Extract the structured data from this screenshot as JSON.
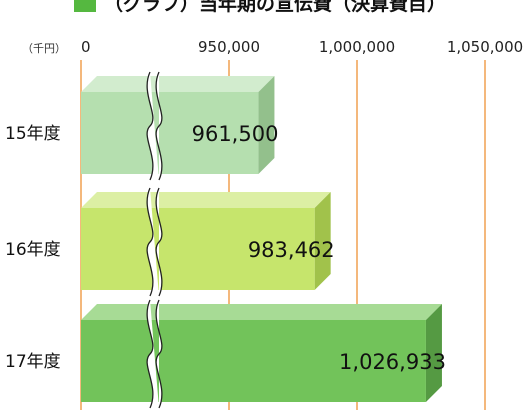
{
  "chart_data": {
    "type": "bar",
    "orientation": "horizontal",
    "title": "（グラフ）当年期の宣伝費（決算費目）",
    "unit": "（千円）",
    "categories": [
      "15年度",
      "16年度",
      "17年度"
    ],
    "values": [
      961500,
      983462,
      1026933
    ],
    "value_labels": [
      "961,500",
      "983,462",
      "1,026,933"
    ],
    "x_ticks": [
      {
        "value": 0,
        "label": "0"
      },
      {
        "value": 950000,
        "label": "950,000"
      },
      {
        "value": 1000000,
        "label": "1,000,000"
      },
      {
        "value": 1050000,
        "label": "1,050,000"
      }
    ],
    "axis_break": true,
    "xlim": [
      0,
      1050000
    ],
    "grid": true,
    "colors": {
      "bars_front": [
        "#b5dfaf",
        "#c6e56c",
        "#72c35a"
      ],
      "bars_top": [
        "#d2ecce",
        "#dcefa4",
        "#a7db95"
      ],
      "bars_side": [
        "#93c08c",
        "#a1c24b",
        "#559a43"
      ],
      "gridline": "#f0a050",
      "title_square": "#55b840"
    }
  }
}
